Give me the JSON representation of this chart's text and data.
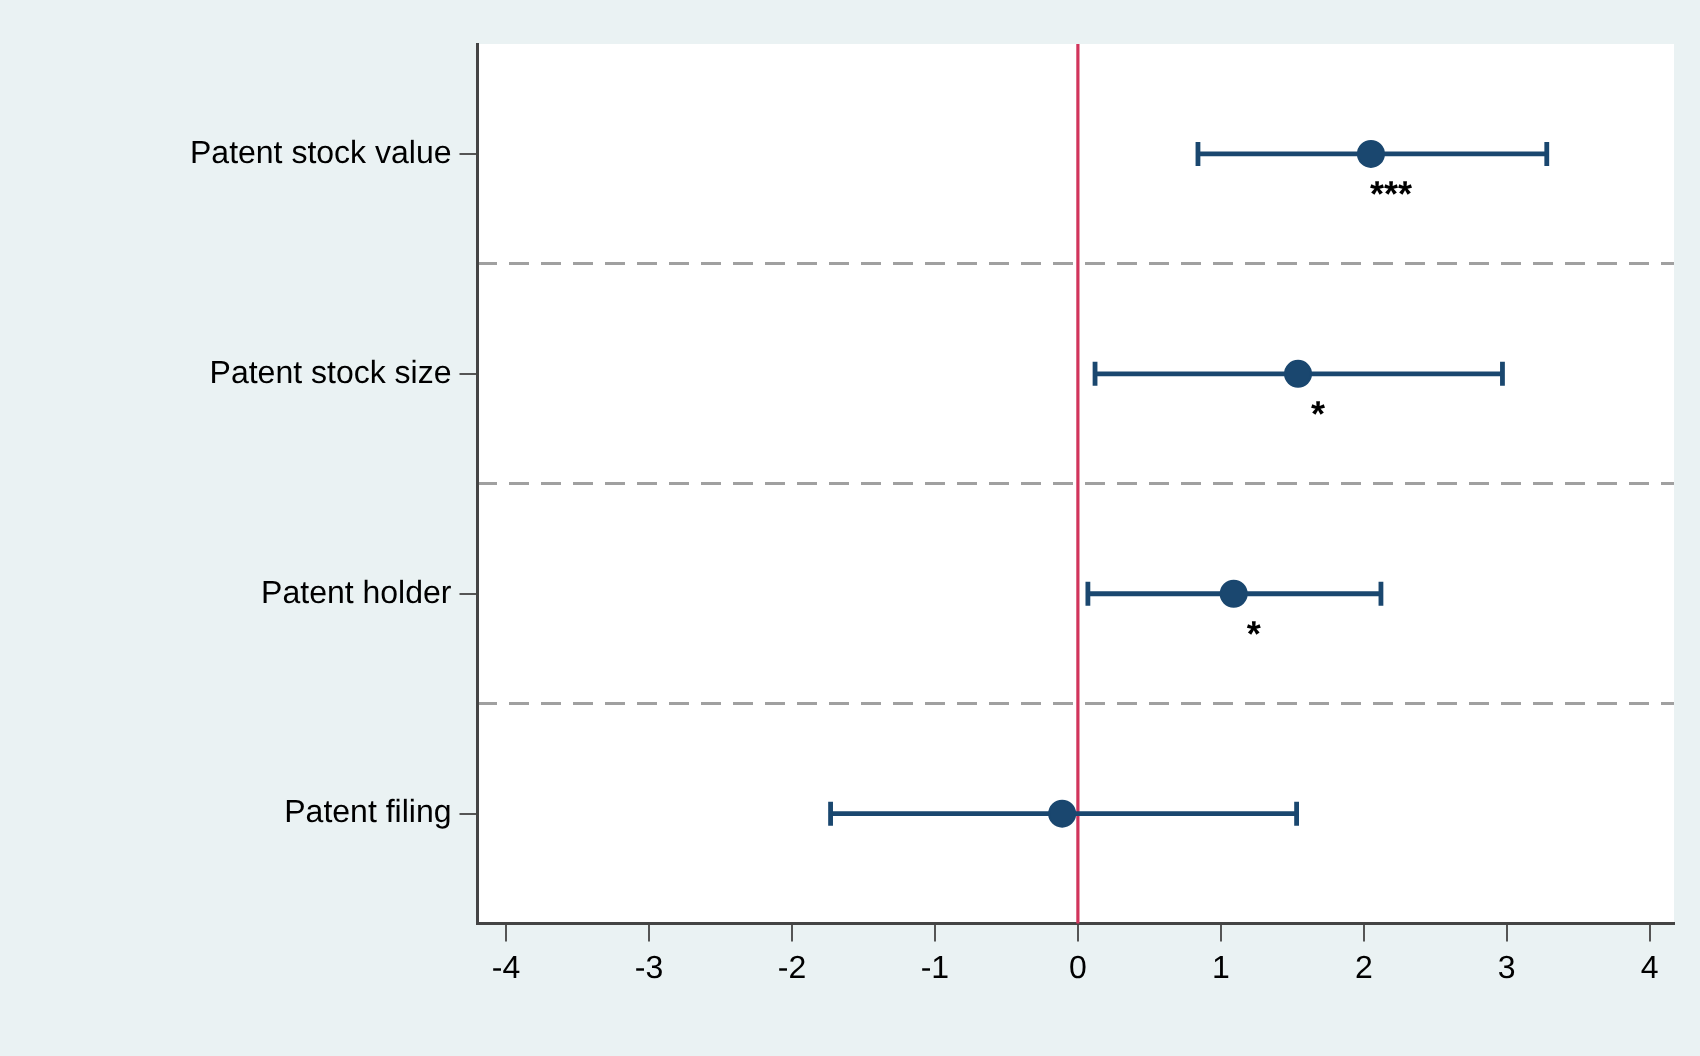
{
  "chart_data": {
    "type": "scatter",
    "orientation": "horizontal",
    "categories": [
      "Patent stock value",
      "Patent stock size",
      "Patent holder",
      "Patent filing"
    ],
    "series": [
      {
        "color": "#1a476f",
        "values": [
          2.05,
          1.54,
          1.09,
          -0.11
        ],
        "errors": [
          [
            0.84,
            3.28
          ],
          [
            0.12,
            2.97
          ],
          [
            0.07,
            2.12
          ],
          [
            -1.73,
            1.53
          ]
        ]
      }
    ],
    "marker": "circle",
    "xlim": [
      -4.2,
      4.17
    ],
    "xticks": [
      -4,
      -3,
      -2,
      -1,
      0,
      1,
      2,
      3,
      4
    ],
    "grid": "y",
    "legend": false,
    "ref_lines": [
      {
        "axis": "x",
        "value": 0,
        "color": "#d1345b"
      }
    ],
    "annotations": [
      {
        "text": "***",
        "x": 2.05,
        "y": "Patent stock value"
      },
      {
        "text": "*",
        "x": 1.54,
        "y": "Patent stock size"
      },
      {
        "text": "*",
        "x": 1.09,
        "y": "Patent holder"
      }
    ]
  }
}
